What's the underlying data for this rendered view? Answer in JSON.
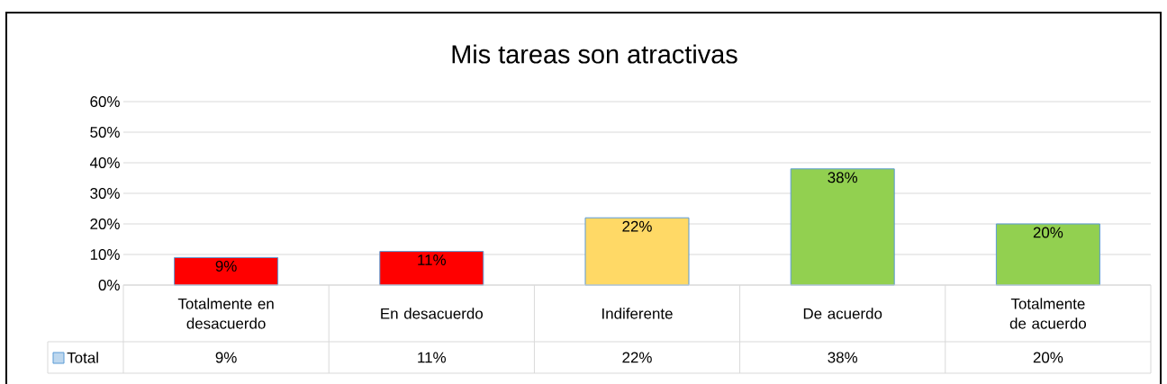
{
  "chart_data": {
    "type": "bar",
    "title": "Mis tareas son atractivas",
    "categories": [
      "Totalmente en desacuerdo",
      "En desacuerdo",
      "Indiferente",
      "De acuerdo",
      "Totalmente de acuerdo"
    ],
    "series": [
      {
        "name": "Total",
        "colors": [
          "#ff0000",
          "#ff0000",
          "#ffd966",
          "#92d050",
          "#92d050"
        ],
        "values": [
          9,
          11,
          22,
          38,
          20
        ],
        "value_labels": [
          "9%",
          "11%",
          "22%",
          "38%",
          "20%"
        ]
      }
    ],
    "ylim": [
      0,
      60
    ],
    "yticks": [
      {
        "value": 0,
        "label": "0%"
      },
      {
        "value": 10,
        "label": "10%"
      },
      {
        "value": 20,
        "label": "20%"
      },
      {
        "value": 30,
        "label": "30%"
      },
      {
        "value": 40,
        "label": "40%"
      },
      {
        "value": 50,
        "label": "50%"
      },
      {
        "value": 60,
        "label": "60%"
      }
    ],
    "grid": "y",
    "legend": "bottom"
  }
}
